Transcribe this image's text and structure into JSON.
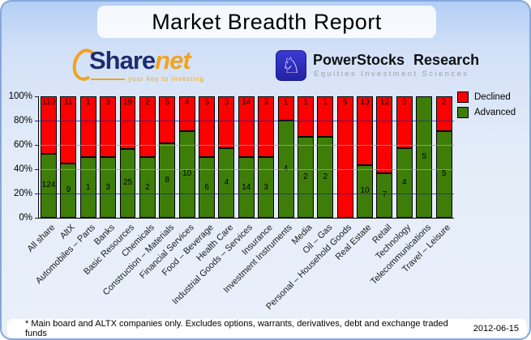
{
  "title": "Market Breadth Report",
  "logos": {
    "sharenet": {
      "name_part1": "Share",
      "name_part2": "net",
      "tagline": "your key to investing",
      "brand_navy": "#1d2d72",
      "brand_orange": "#f0a31d"
    },
    "powerstocks": {
      "name": "PowerStocks Research",
      "subtitle": "Equities Investment Sciences",
      "knight_icon": "chess-knight-icon",
      "badge_color": "#2a2ab8"
    }
  },
  "legend": [
    {
      "label": "Declined",
      "color": "#fe0000"
    },
    {
      "label": "Advanced",
      "color": "#3e7e08"
    }
  ],
  "footer": {
    "note": "* Main board and ALTX companies only. Excludes options, warrants, derivatives, debt and exchange traded funds",
    "date": "2012-06-15"
  },
  "chart_data": {
    "type": "bar",
    "stacked": true,
    "unit": "percent of companies",
    "title": "Market Breadth Report",
    "xlabel": "",
    "ylabel": "",
    "ylim": [
      0,
      100
    ],
    "y_ticks": [
      "100%",
      "80%",
      "60%",
      "40%",
      "20%",
      "0%"
    ],
    "legend_position": "right",
    "categories": [
      "All share",
      "AltX",
      "Automobiles – Parts",
      "Banks",
      "Basic Resources",
      "Chemicals",
      "Construction – Materials",
      "Financial Services",
      "Food – Beverage",
      "Health Care",
      "Industrial Goods – Services",
      "Insurance",
      "Investment Instruments",
      "Media",
      "Oil – Gas",
      "Personal – Household Goods",
      "Real Estate",
      "Retail",
      "Technology",
      "Telecommunications",
      "Travel – Leisure"
    ],
    "series": [
      {
        "name": "Advanced",
        "color": "#3e7e08",
        "counts": [
          124,
          9,
          1,
          3,
          25,
          2,
          8,
          10,
          6,
          4,
          14,
          3,
          4,
          2,
          2,
          0,
          10,
          7,
          4,
          5,
          5
        ]
      },
      {
        "name": "Declined",
        "color": "#fe0000",
        "counts": [
          110,
          11,
          1,
          3,
          19,
          2,
          5,
          4,
          6,
          3,
          14,
          3,
          1,
          1,
          1,
          5,
          13,
          12,
          3,
          0,
          2
        ]
      }
    ],
    "advanced_pct": [
      53.0,
      45.0,
      50.0,
      50.0,
      56.8,
      50.0,
      61.5,
      71.4,
      50.0,
      57.1,
      50.0,
      50.0,
      80.0,
      66.7,
      66.7,
      0.0,
      43.5,
      36.8,
      57.1,
      100.0,
      71.4
    ]
  }
}
